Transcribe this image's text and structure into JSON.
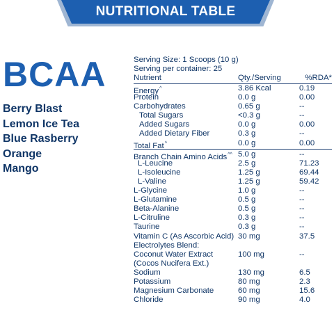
{
  "banner": {
    "title": "NUTRITIONAL TABLE"
  },
  "product": {
    "name": "BCAA"
  },
  "flavors": [
    "Berry Blast",
    "Lemon Ice Tea",
    "Blue Rasberry",
    "Orange",
    "Mango"
  ],
  "nutrition": {
    "serving_size": "Serving Size: 1 Scoops (10 g)",
    "servings_per_container": "Serving per container: 25",
    "headers": {
      "nutrient": "Nutrient",
      "qty": "Qty./Serving",
      "rda": "%RDA*"
    },
    "rows": [
      {
        "name": "Energy",
        "mark": "^",
        "qty": "3.86 Kcal",
        "rda": "0.19"
      },
      {
        "name": "Protein",
        "qty": "0.0 g",
        "rda": "0.00"
      },
      {
        "name": "Carbohydrates",
        "qty": "0.65 g",
        "rda": "--"
      },
      {
        "name": "Total Sugars",
        "qty": "<0.3 g",
        "rda": "--"
      },
      {
        "name": "Added Sugars",
        "qty": "0.0 g",
        "rda": "0.00"
      },
      {
        "name": "Added Dietary Fiber",
        "qty": "0.3 g",
        "rda": "--"
      },
      {
        "name": "Total Fat",
        "mark": "^",
        "qty": "0.0 g",
        "rda": "0.00"
      },
      {
        "name": "Branch Chain Amino Acids",
        "mark": "^^",
        "qty": "5.0 g",
        "rda": "--"
      },
      {
        "name": "L-Leucine",
        "qty": "2.5 g",
        "rda": "71.23"
      },
      {
        "name": "L-Isoleucine",
        "qty": "1.25 g",
        "rda": "69.44"
      },
      {
        "name": "L-Valine",
        "qty": "1.25 g",
        "rda": "59.42"
      },
      {
        "name": "L-Glycine",
        "qty": "1.0 g",
        "rda": "--"
      },
      {
        "name": "L-Glutamine",
        "qty": "0.5 g",
        "rda": "--"
      },
      {
        "name": "Beta-Alanine",
        "qty": "0.5 g",
        "rda": "--"
      },
      {
        "name": "L-Citruline",
        "qty": "0.3 g",
        "rda": "--"
      },
      {
        "name": "Taurine",
        "qty": "0.3 g",
        "rda": "--"
      },
      {
        "name": "Vitamin C (As Ascorbic Acid)",
        "qty": "30 mg",
        "rda": "37.5"
      },
      {
        "name": "Electrolytes Blend:",
        "qty": "",
        "rda": ""
      },
      {
        "name": "Coconut Water Extract",
        "qty": "100 mg",
        "rda": "--"
      },
      {
        "name": "(Cocos Nucifera Ext.)",
        "qty": "",
        "rda": ""
      },
      {
        "name": "Sodium",
        "qty": "130 mg",
        "rda": "6.5"
      },
      {
        "name": "Potassium",
        "qty": "80 mg",
        "rda": "2.3"
      },
      {
        "name": "Magnesium Carbonate",
        "qty": "60 mg",
        "rda": "15.6"
      },
      {
        "name": "Chloride",
        "qty": "90 mg",
        "rda": "4.0"
      }
    ]
  }
}
